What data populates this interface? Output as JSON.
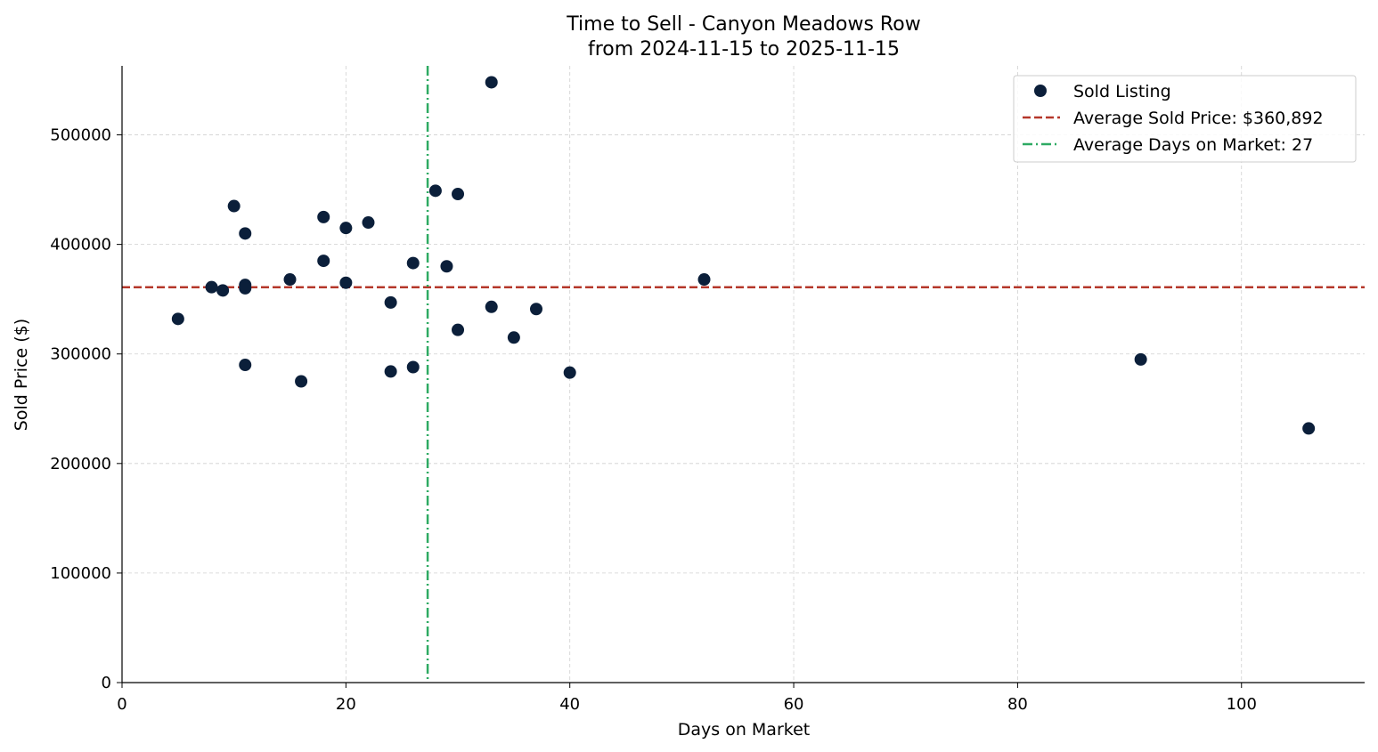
{
  "chart_data": {
    "type": "scatter",
    "title_line1": "Time to Sell - Canyon Meadows Row",
    "title_line2": "from 2024-11-15 to 2025-11-15",
    "xlabel": "Days on Market",
    "ylabel": "Sold Price ($)",
    "xlim": [
      0,
      111
    ],
    "ylim": [
      0,
      563000
    ],
    "xticks": [
      0,
      20,
      40,
      60,
      80,
      100
    ],
    "yticks": [
      0,
      100000,
      200000,
      300000,
      400000,
      500000
    ],
    "grid": true,
    "legend_position": "top-right",
    "series": [
      {
        "name": "Sold Listing",
        "color": "#0b1f3a",
        "points": [
          {
            "x": 5,
            "y": 332000
          },
          {
            "x": 8,
            "y": 361000
          },
          {
            "x": 9,
            "y": 358000
          },
          {
            "x": 10,
            "y": 435000
          },
          {
            "x": 11,
            "y": 410000
          },
          {
            "x": 11,
            "y": 363000
          },
          {
            "x": 11,
            "y": 360000
          },
          {
            "x": 11,
            "y": 290000
          },
          {
            "x": 15,
            "y": 368000
          },
          {
            "x": 16,
            "y": 275000
          },
          {
            "x": 18,
            "y": 425000
          },
          {
            "x": 18,
            "y": 385000
          },
          {
            "x": 20,
            "y": 415000
          },
          {
            "x": 20,
            "y": 365000
          },
          {
            "x": 22,
            "y": 420000
          },
          {
            "x": 24,
            "y": 347000
          },
          {
            "x": 24,
            "y": 284000
          },
          {
            "x": 26,
            "y": 383000
          },
          {
            "x": 26,
            "y": 288000
          },
          {
            "x": 28,
            "y": 449000
          },
          {
            "x": 29,
            "y": 380000
          },
          {
            "x": 30,
            "y": 446000
          },
          {
            "x": 30,
            "y": 322000
          },
          {
            "x": 33,
            "y": 548000
          },
          {
            "x": 33,
            "y": 343000
          },
          {
            "x": 35,
            "y": 315000
          },
          {
            "x": 37,
            "y": 341000
          },
          {
            "x": 40,
            "y": 283000
          },
          {
            "x": 52,
            "y": 368000
          },
          {
            "x": 91,
            "y": 295000
          },
          {
            "x": 106,
            "y": 232000
          }
        ]
      }
    ],
    "reference_lines": [
      {
        "orientation": "horizontal",
        "value": 360892,
        "label": "Average Sold Price: $360,892",
        "color": "#b5372a",
        "style": "dashed"
      },
      {
        "orientation": "vertical",
        "value": 27.3,
        "label": "Average Days on Market: 27",
        "color": "#2eaa63",
        "style": "dashdot"
      }
    ]
  }
}
